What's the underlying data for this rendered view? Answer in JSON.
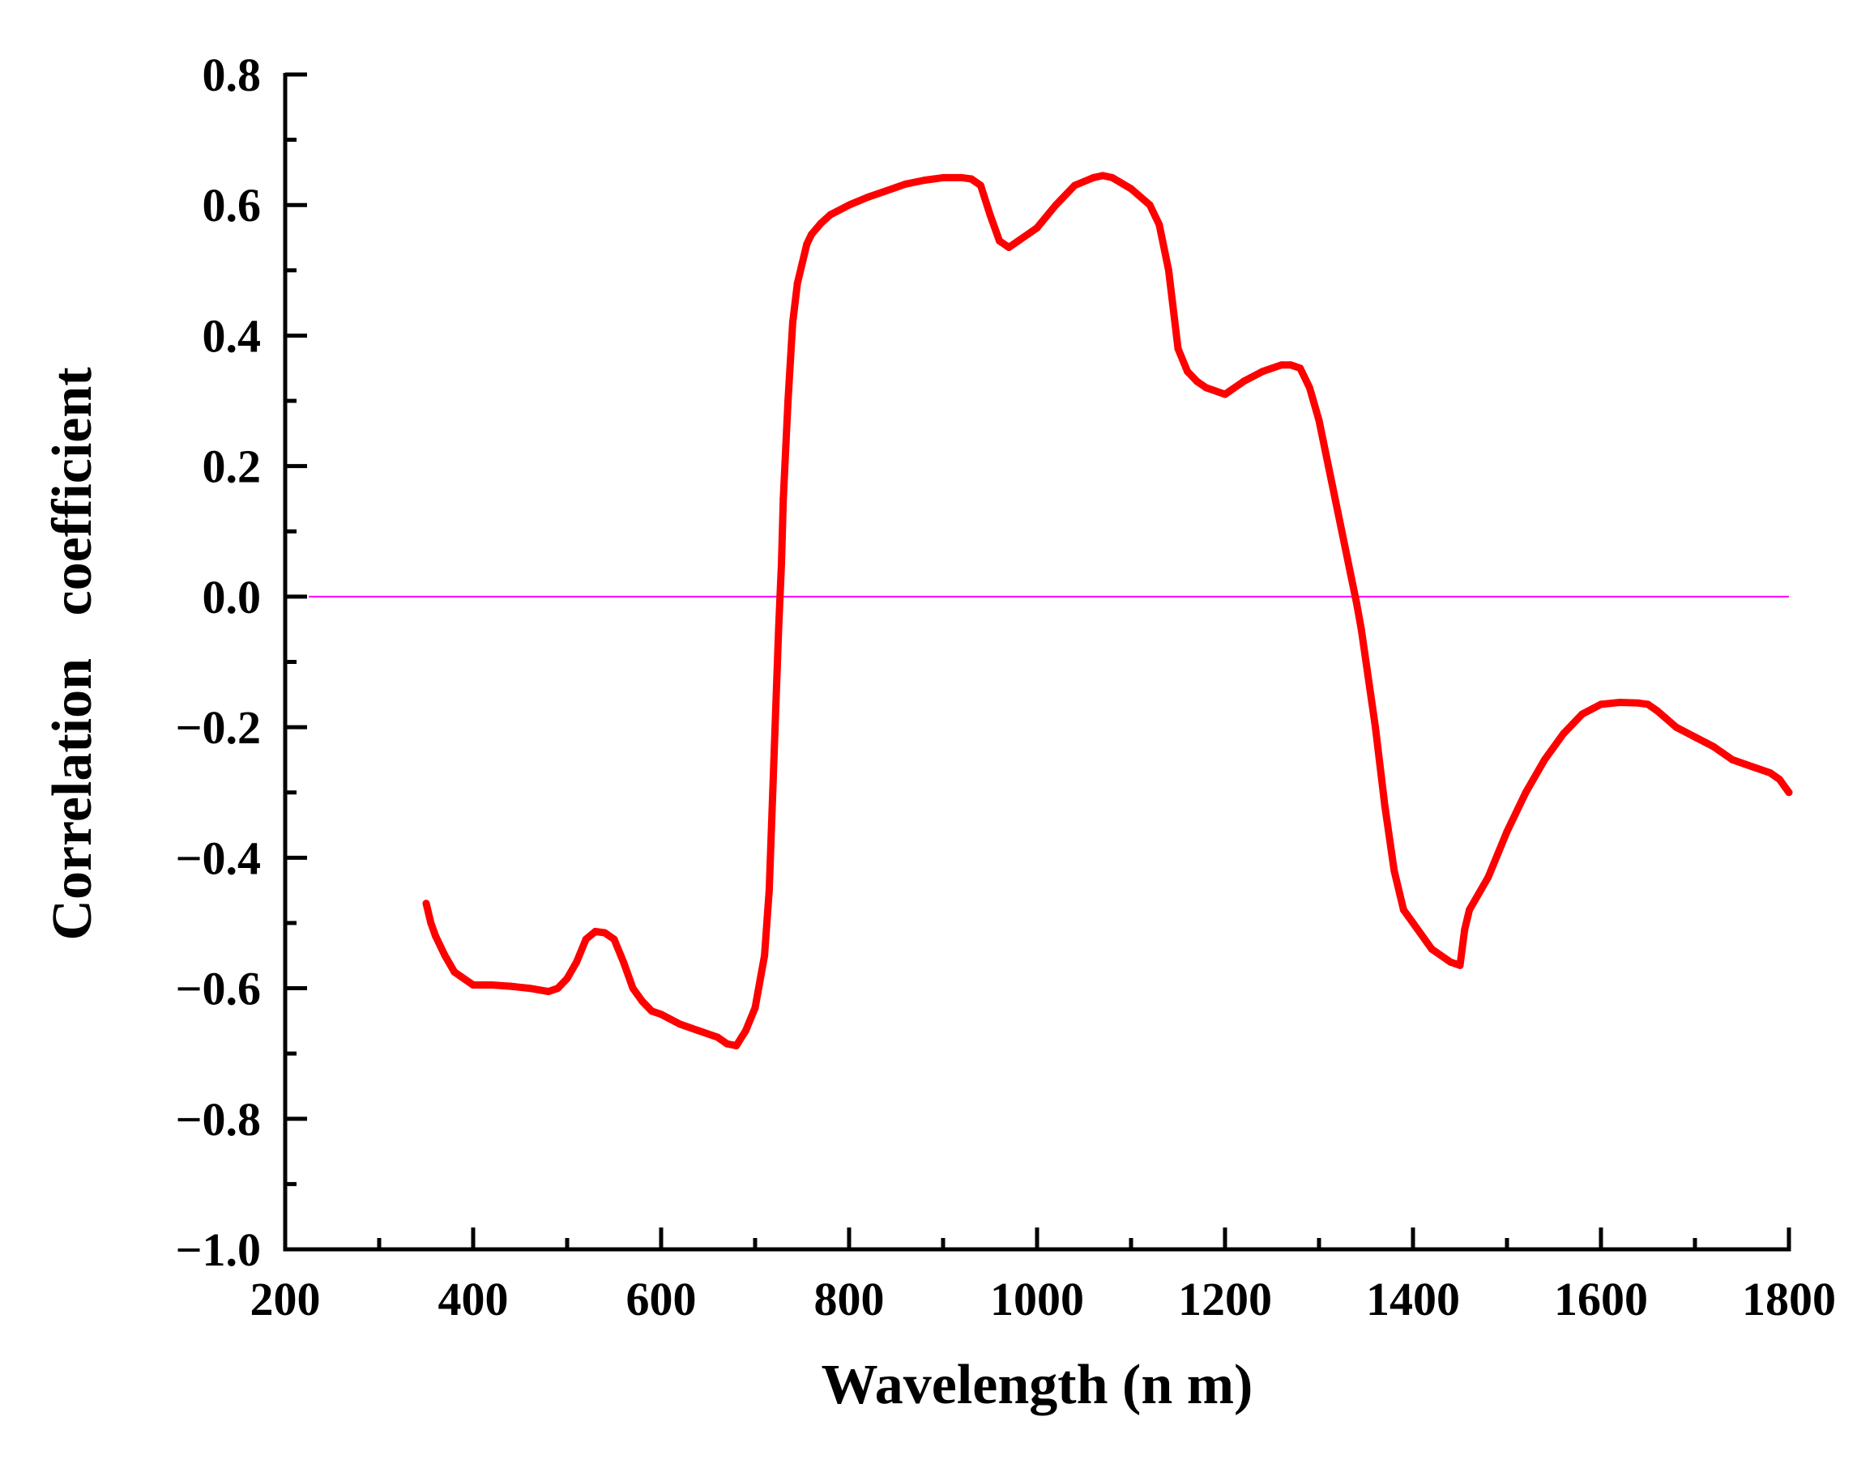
{
  "chart_data": {
    "type": "line",
    "title": "",
    "xlabel": "Wavelength (n m)",
    "ylabel": "Correlation   coefficient",
    "xlim": [
      200,
      1800
    ],
    "ylim": [
      -1.0,
      0.8
    ],
    "x_ticks": [
      200,
      400,
      600,
      800,
      1000,
      1200,
      1400,
      1600,
      1800
    ],
    "x_tick_labels": [
      "200",
      "400",
      "600",
      "800",
      "1000",
      "1200",
      "1400",
      "1600",
      "1800"
    ],
    "y_ticks": [
      0.8,
      0.6,
      0.4,
      0.2,
      0.0,
      -0.2,
      -0.4,
      -0.6,
      -0.8,
      -1.0
    ],
    "y_tick_labels": [
      "0.8",
      "0.6",
      "0.4",
      "0.2",
      "0.0",
      "−0.2",
      "−0.4",
      "−0.6",
      "−0.8",
      "−1.0"
    ],
    "grid": false,
    "reference_line": {
      "y": 0.0,
      "x_range": [
        225,
        1800
      ],
      "color": "#ff00ff"
    },
    "series": [
      {
        "name": "Correlation coefficient",
        "color": "#ff0000",
        "x": [
          350,
          355,
          360,
          370,
          380,
          390,
          400,
          420,
          440,
          460,
          480,
          490,
          500,
          510,
          520,
          530,
          540,
          550,
          560,
          570,
          580,
          590,
          600,
          620,
          640,
          660,
          670,
          680,
          690,
          700,
          710,
          715,
          720,
          725,
          728,
          730,
          735,
          740,
          745,
          750,
          755,
          760,
          770,
          780,
          800,
          820,
          840,
          860,
          880,
          900,
          920,
          930,
          940,
          950,
          960,
          970,
          980,
          1000,
          1020,
          1040,
          1060,
          1070,
          1080,
          1100,
          1120,
          1130,
          1140,
          1150,
          1160,
          1170,
          1180,
          1200,
          1220,
          1240,
          1260,
          1270,
          1280,
          1290,
          1300,
          1310,
          1320,
          1330,
          1340,
          1345,
          1350,
          1360,
          1370,
          1380,
          1390,
          1400,
          1420,
          1440,
          1450,
          1455,
          1460,
          1480,
          1500,
          1520,
          1540,
          1560,
          1580,
          1600,
          1620,
          1640,
          1650,
          1660,
          1680,
          1700,
          1720,
          1740,
          1760,
          1780,
          1790,
          1800
        ],
        "values": [
          -0.47,
          -0.5,
          -0.52,
          -0.55,
          -0.575,
          -0.585,
          -0.595,
          -0.595,
          -0.597,
          -0.6,
          -0.605,
          -0.6,
          -0.585,
          -0.56,
          -0.525,
          -0.513,
          -0.515,
          -0.525,
          -0.56,
          -0.6,
          -0.62,
          -0.635,
          -0.64,
          -0.655,
          -0.665,
          -0.675,
          -0.685,
          -0.688,
          -0.665,
          -0.63,
          -0.55,
          -0.45,
          -0.25,
          -0.05,
          0.05,
          0.15,
          0.3,
          0.42,
          0.48,
          0.51,
          0.54,
          0.555,
          0.572,
          0.585,
          0.6,
          0.612,
          0.622,
          0.632,
          0.638,
          0.642,
          0.642,
          0.64,
          0.63,
          0.585,
          0.545,
          0.535,
          0.545,
          0.565,
          0.6,
          0.63,
          0.642,
          0.645,
          0.642,
          0.625,
          0.6,
          0.57,
          0.5,
          0.38,
          0.345,
          0.33,
          0.32,
          0.31,
          0.33,
          0.345,
          0.355,
          0.355,
          0.35,
          0.32,
          0.27,
          0.2,
          0.13,
          0.06,
          -0.01,
          -0.05,
          -0.1,
          -0.2,
          -0.32,
          -0.42,
          -0.48,
          -0.5,
          -0.54,
          -0.56,
          -0.565,
          -0.51,
          -0.48,
          -0.43,
          -0.36,
          -0.3,
          -0.25,
          -0.21,
          -0.18,
          -0.165,
          -0.162,
          -0.163,
          -0.165,
          -0.175,
          -0.2,
          -0.215,
          -0.23,
          -0.25,
          -0.26,
          -0.27,
          -0.28,
          -0.3
        ]
      }
    ]
  }
}
